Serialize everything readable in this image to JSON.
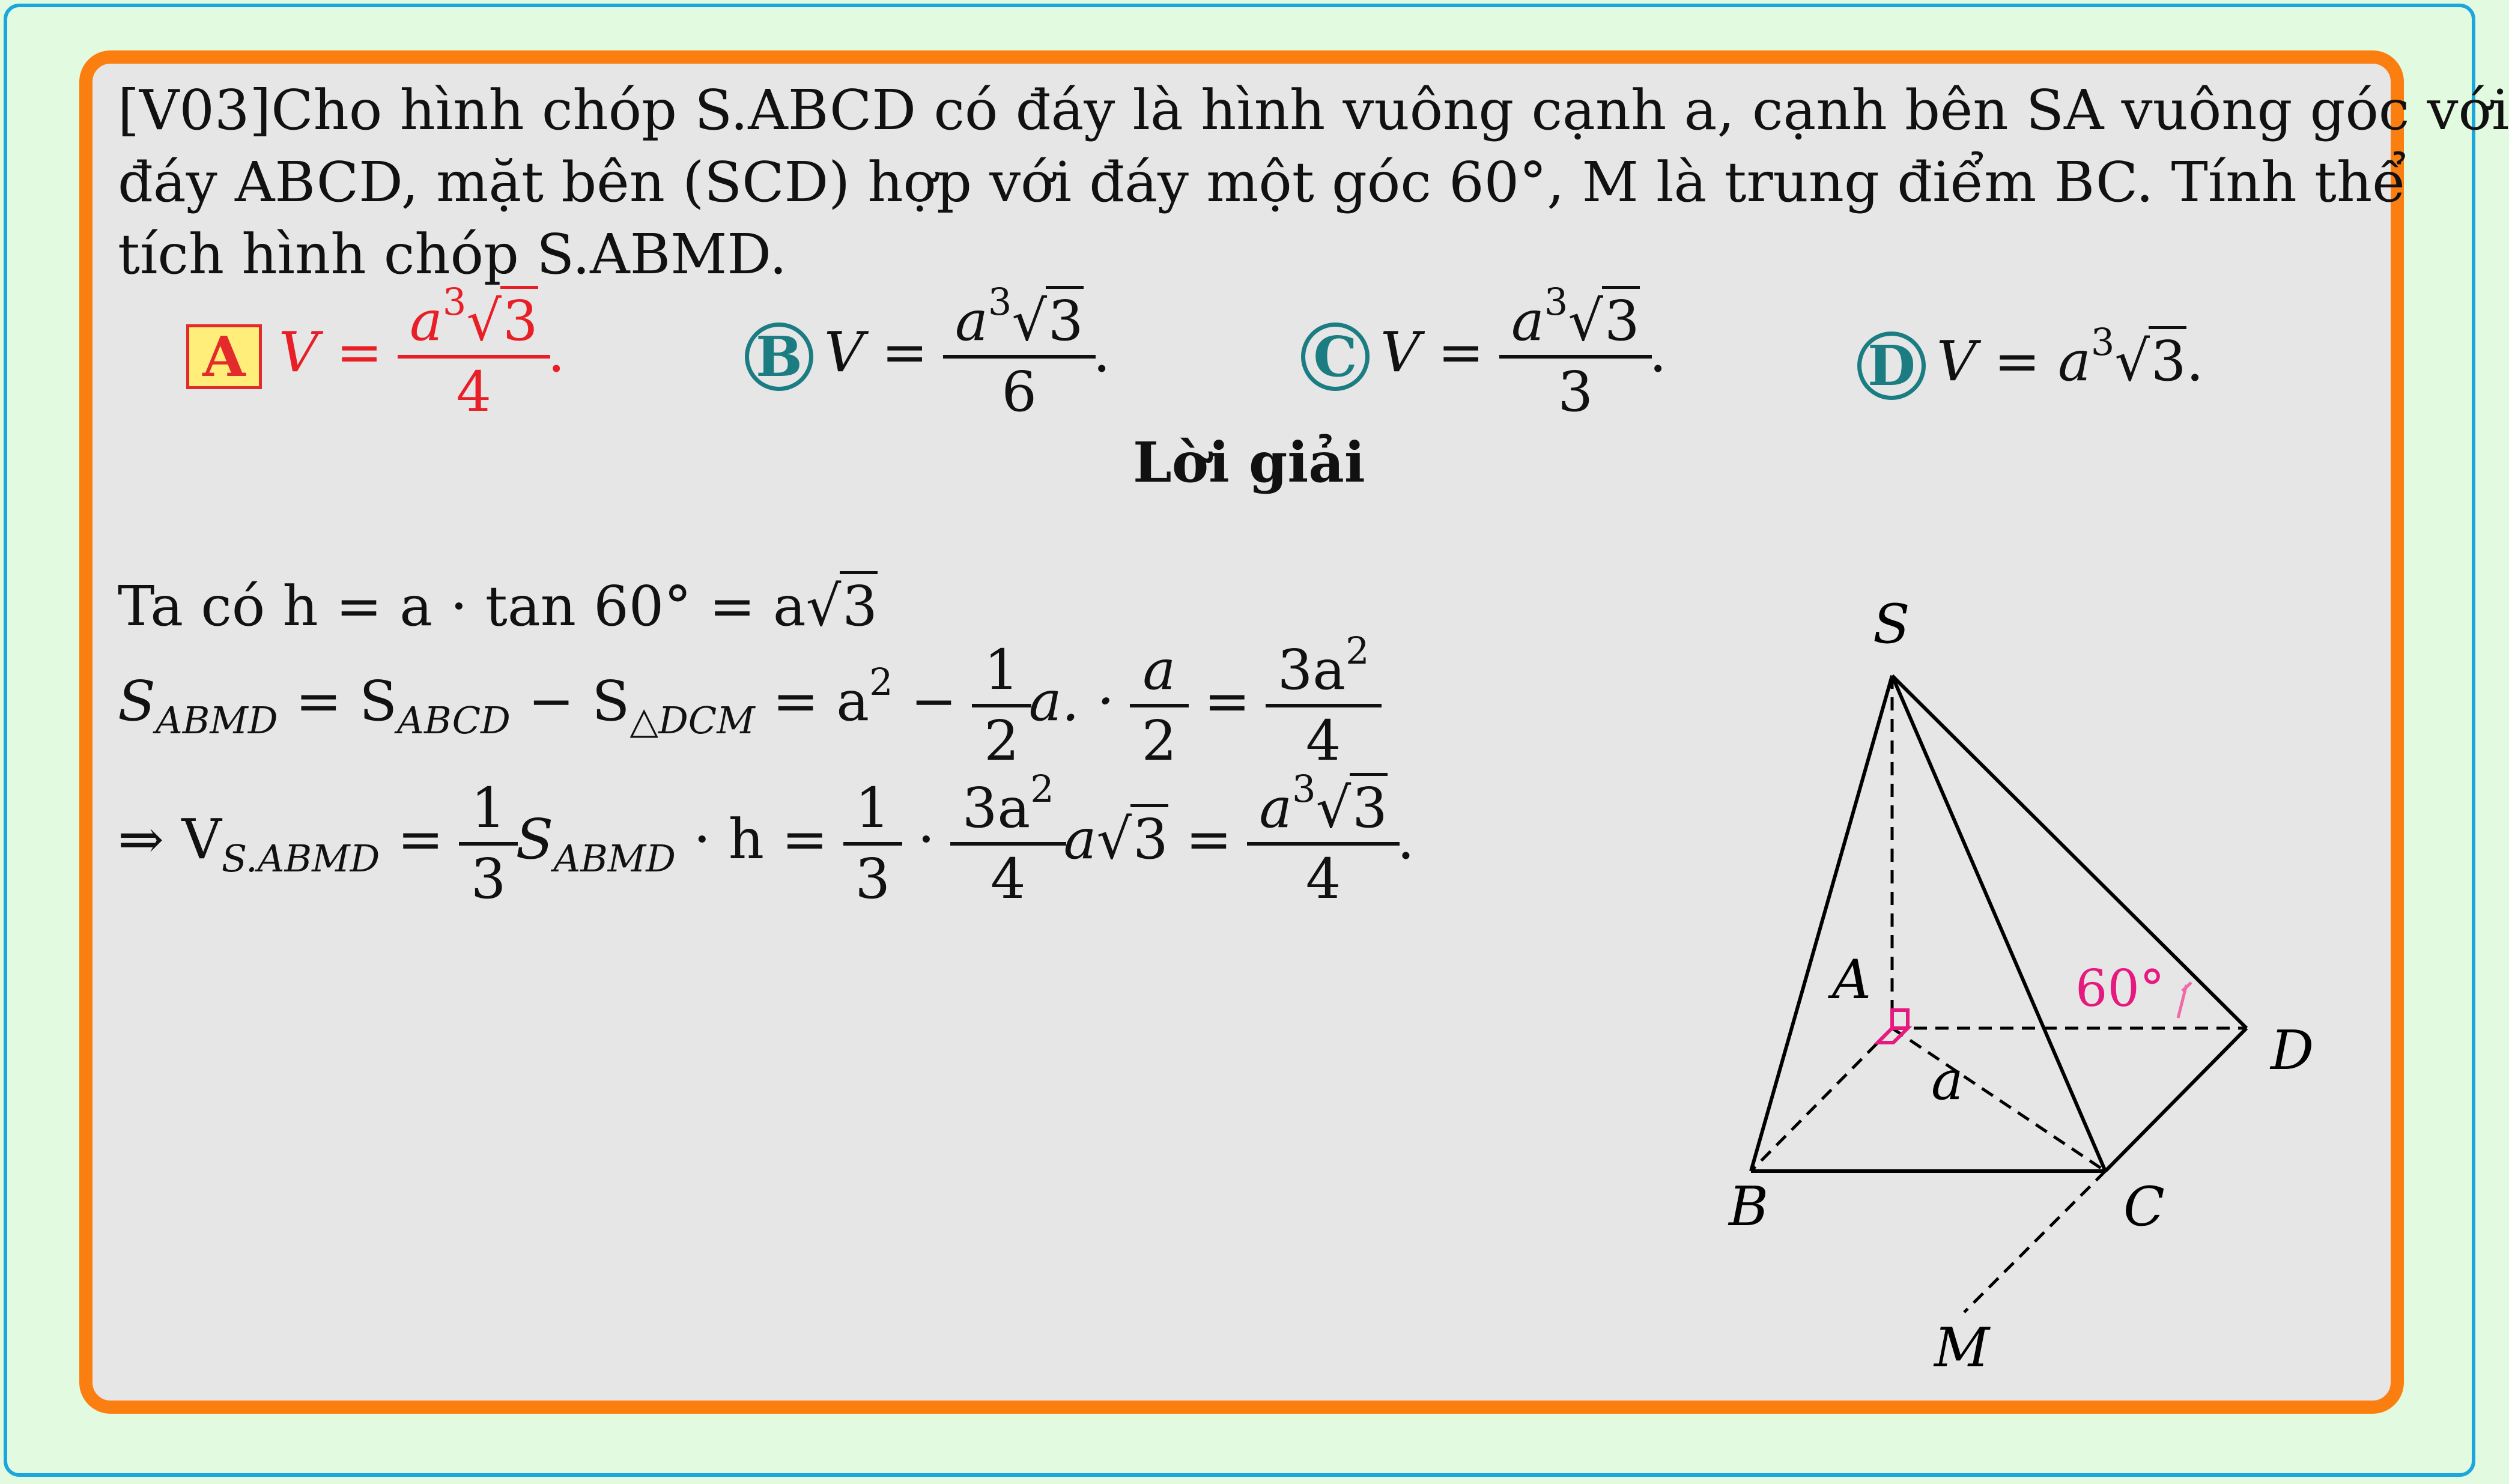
{
  "question": {
    "line1": "[V03]Cho hình chóp S.ABCD có đáy là hình vuông cạnh a, cạnh bên SA vuông góc với",
    "line2": "đáy ABCD, mặt bên (SCD) hợp với đáy một góc 60°, M là trung điểm BC. Tính thể",
    "line3": "tích hình chóp S.ABMD."
  },
  "options": {
    "A": {
      "letter": "A",
      "lhs": "V =",
      "num_base": "a",
      "num_exp": "3",
      "num_root": "3",
      "den": "4",
      "tail": "."
    },
    "B": {
      "letter": "B",
      "lhs": "V =",
      "num_base": "a",
      "num_exp": "3",
      "num_root": "3",
      "den": "6",
      "tail": "."
    },
    "C": {
      "letter": "C",
      "lhs": "V =",
      "num_base": "a",
      "num_exp": "3",
      "num_root": "3",
      "den": "3",
      "tail": "."
    },
    "D": {
      "letter": "D",
      "expr_base": "V = a",
      "expr_exp": "3",
      "expr_root": "3",
      "tail": "."
    }
  },
  "solution": {
    "title": "Lời giải",
    "line1": {
      "text": "Ta có h = a · tan 60° = a",
      "root": "3"
    },
    "line2": {
      "lhs": "S",
      "lhs_sub": "ABMD",
      "eq1": " = S",
      "sub2": "ABCD",
      "minus": " − S",
      "sub3": "△DCM",
      "eq2": " = a",
      "exp": "2",
      "minus2": " − ",
      "f1_num": "1",
      "f1_den": "2",
      "mid": "a. · ",
      "f2_num": "a",
      "f2_den": "2",
      "eq3": " = ",
      "f3_num": "3a",
      "f3_exp": "2",
      "f3_den": "4"
    },
    "line3": {
      "arrow": "⇒ V",
      "sub": "S.ABMD",
      "eq": " = ",
      "f1_num": "1",
      "f1_den": "3",
      "s": "S",
      "s_sub": "ABMD",
      "mid": " · h = ",
      "f2_num": "1",
      "f2_den": "3",
      "dot": " · ",
      "f3_num": "3a",
      "f3_exp": "2",
      "f3_den": "4",
      "after": "a",
      "root": "3",
      "eq2": " = ",
      "f4_base": "a",
      "f4_exp": "3",
      "f4_root": "3",
      "f4_den": "4",
      "tail": "."
    }
  },
  "figure": {
    "labels": {
      "S": "S",
      "A": "A",
      "B": "B",
      "C": "C",
      "D": "D",
      "M": "M",
      "a": "a"
    },
    "angle_label": "60°",
    "accent_color": "#e6197f"
  }
}
